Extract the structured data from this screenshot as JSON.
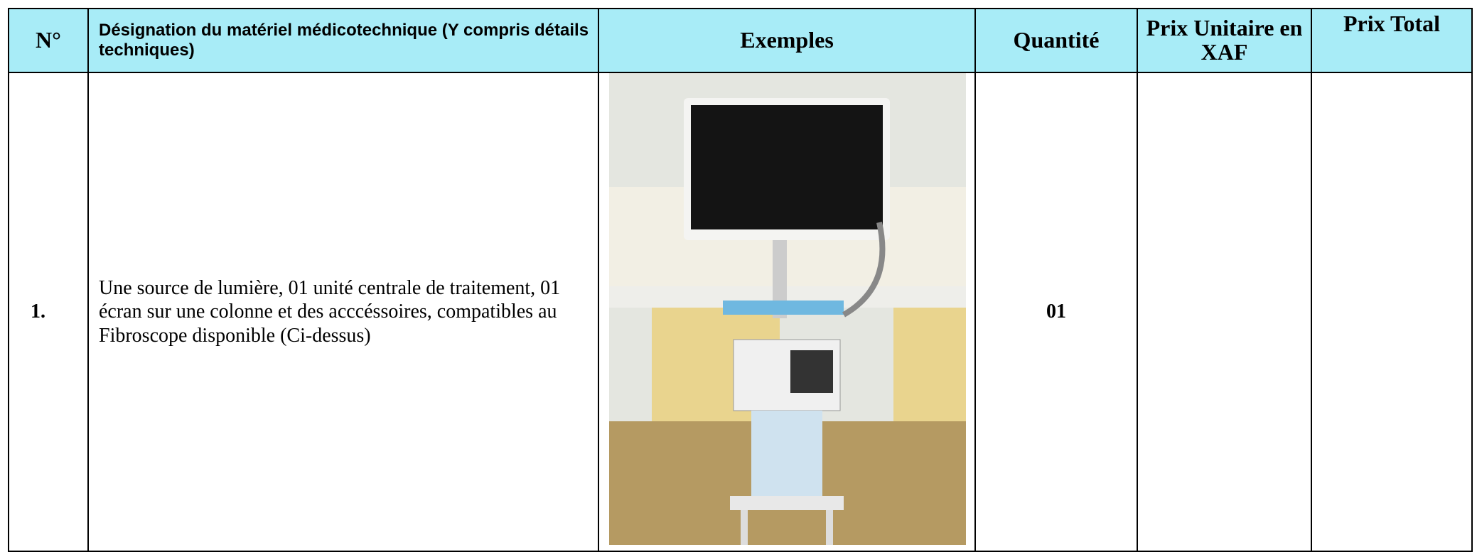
{
  "table": {
    "header": [
      "N°",
      "Désignation du matériel médicotechnique (Y compris détails techniques)",
      "Exemples",
      "Quantité",
      "Prix Unitaire en XAF",
      "Prix Total"
    ],
    "rows": [
      {
        "number": "1.",
        "designation": "Une source de lumière, 01 unité centrale de traitement, 01 écran sur une colonne et des acccéssoires, compatibles au Fibroscope disponible (Ci-dessus)",
        "quantity": "01"
      }
    ]
  }
}
